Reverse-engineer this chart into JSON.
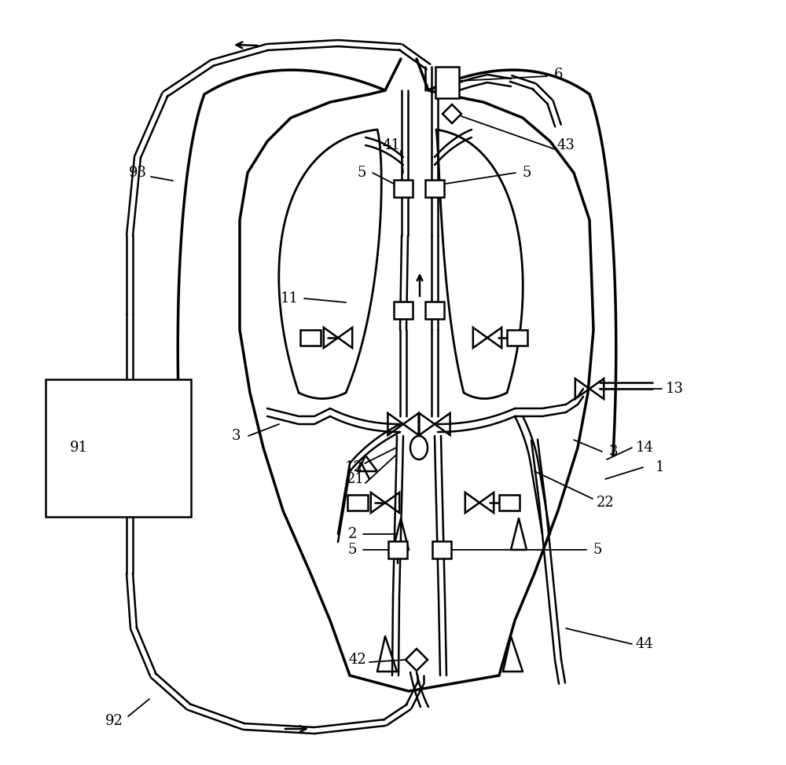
{
  "bg_color": "#ffffff",
  "lc": "#000000",
  "lw": 1.8,
  "fig_w": 10.0,
  "fig_h": 9.74
}
